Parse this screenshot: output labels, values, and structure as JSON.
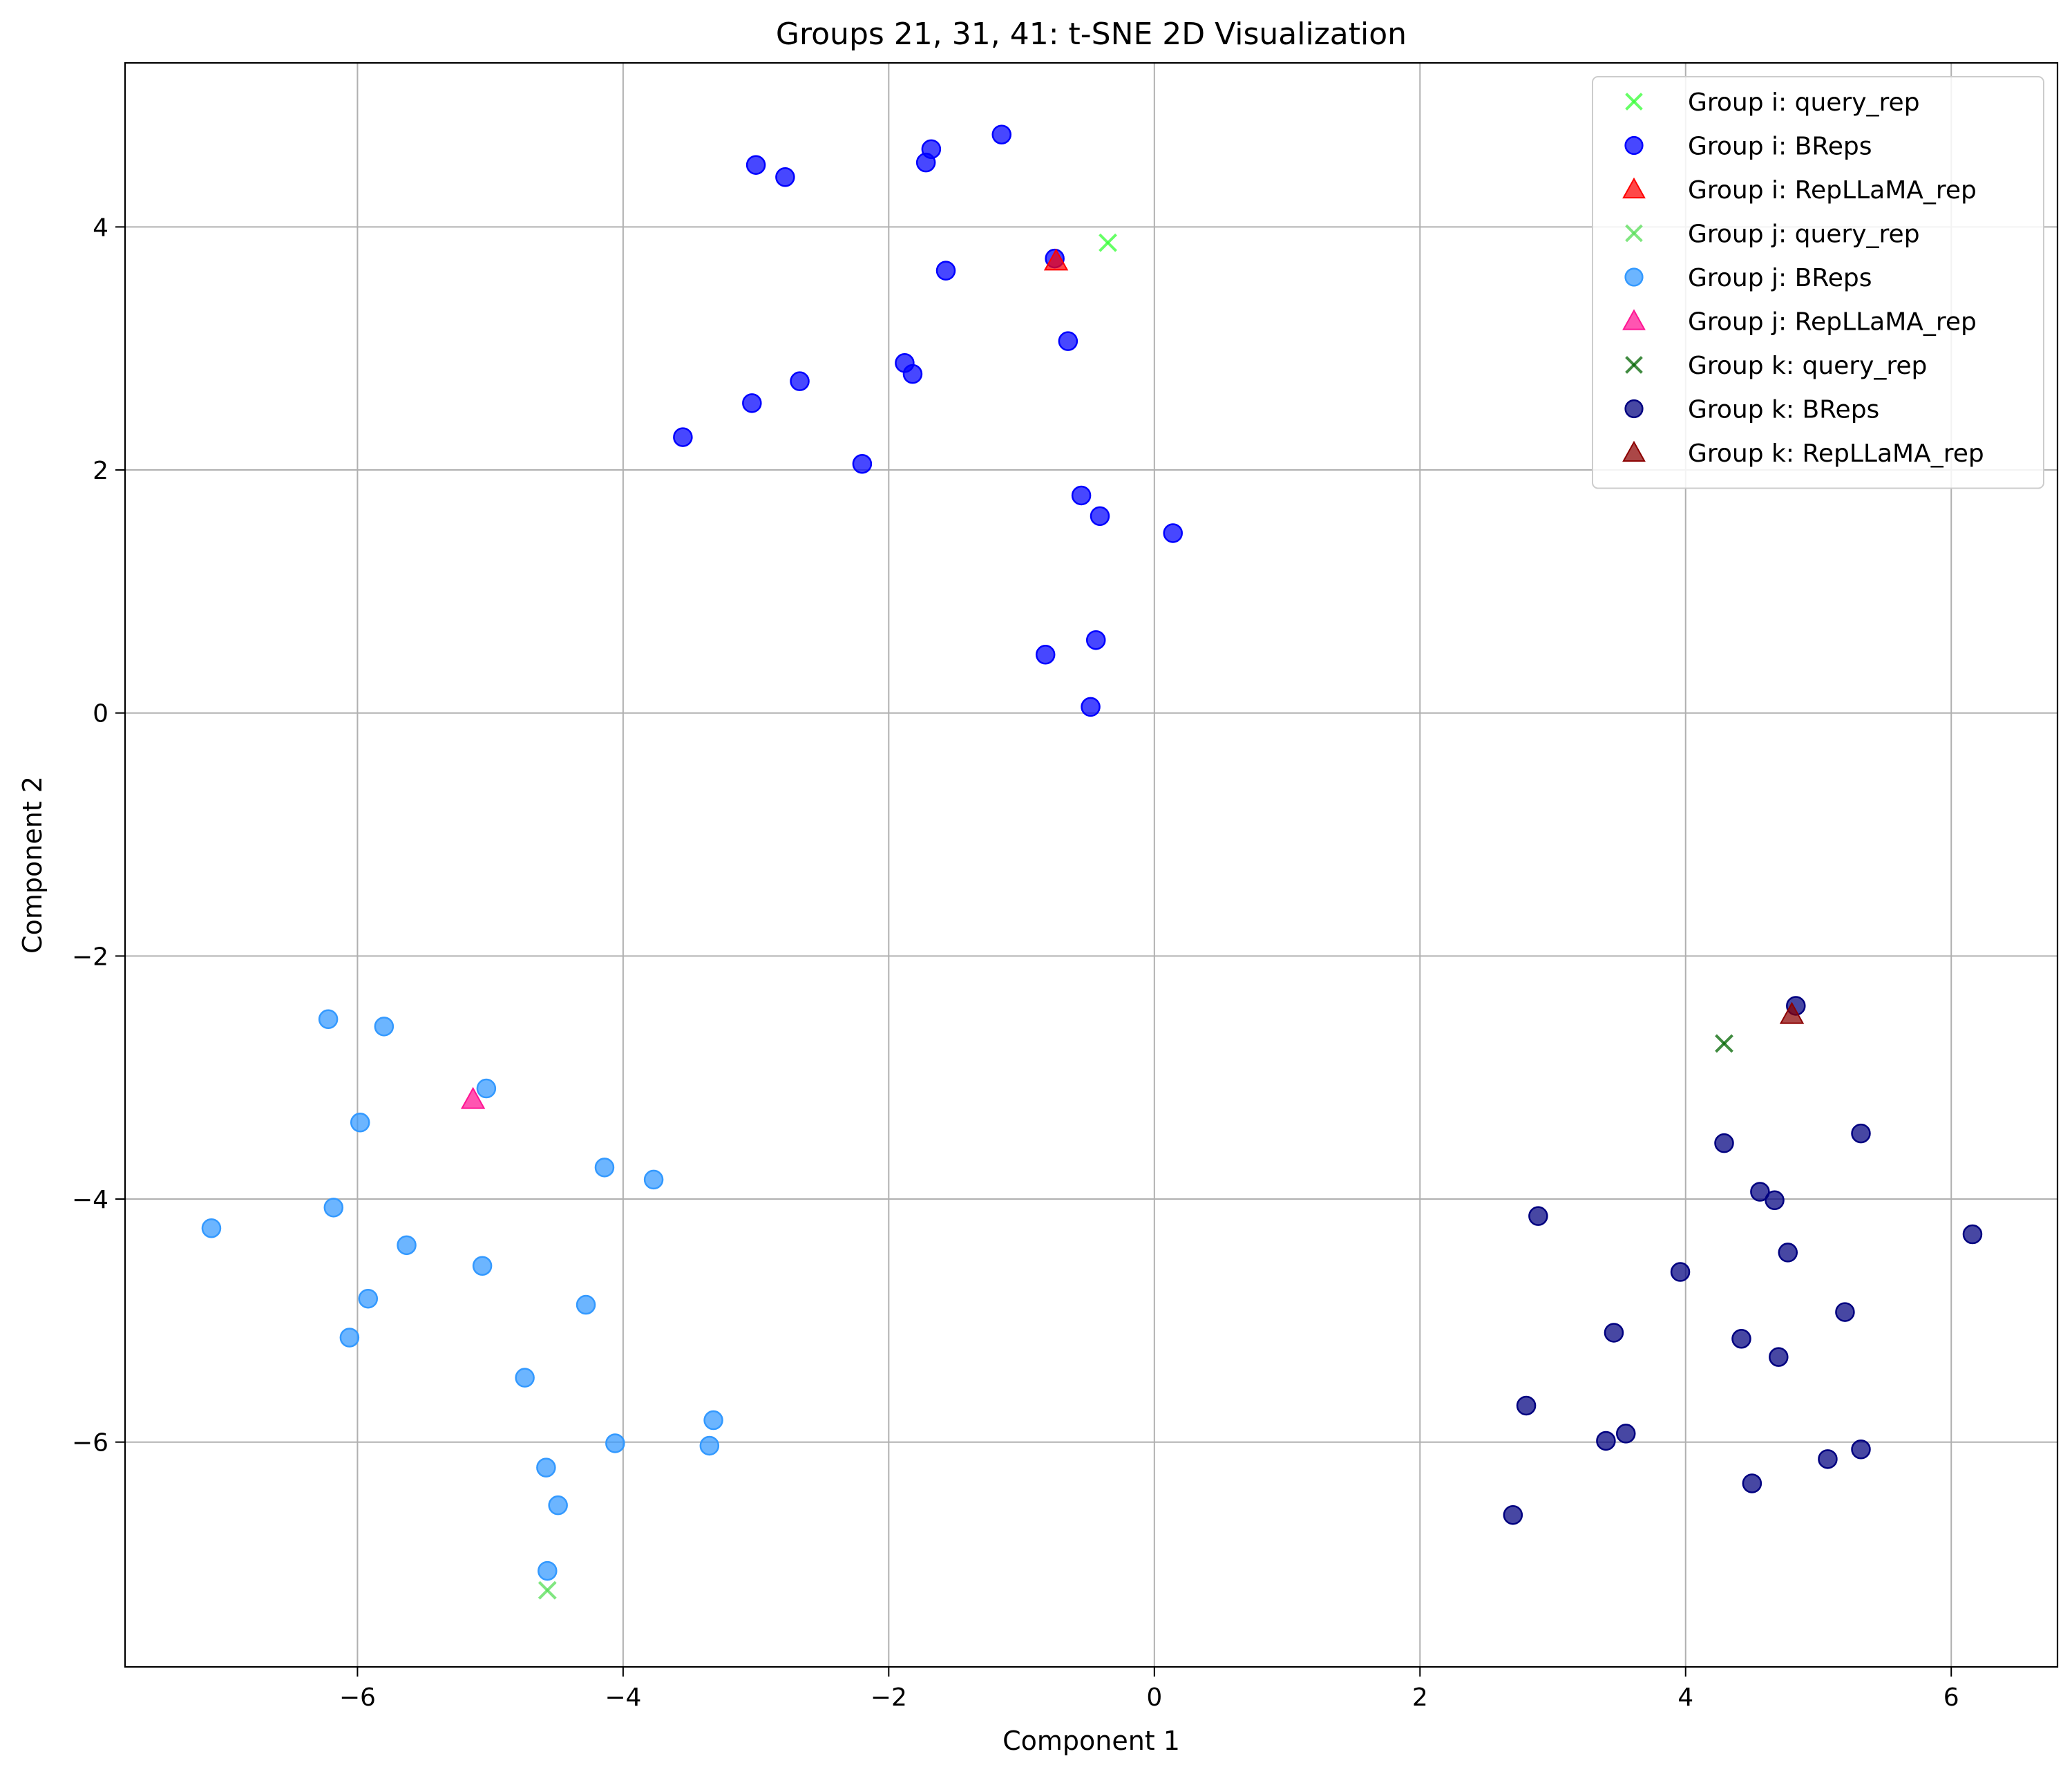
{
  "chart_data": {
    "type": "scatter",
    "title": "Groups 21, 31, 41: t-SNE 2D Visualization",
    "xlabel": "Component 1",
    "ylabel": "Component 2",
    "xlim": [
      -7.75,
      6.8
    ],
    "ylim": [
      -7.85,
      5.35
    ],
    "xticks": [
      -6,
      -4,
      -2,
      0,
      2,
      4,
      6
    ],
    "yticks": [
      -6,
      -4,
      -2,
      0,
      2,
      4
    ],
    "grid": true,
    "legend_position": "top-right",
    "series": [
      {
        "name": "Group i: query_rep",
        "marker": "x",
        "color": "#33ff33",
        "points": [
          [
            -0.35,
            3.87
          ]
        ]
      },
      {
        "name": "Group i: BReps",
        "marker": "circle",
        "color": "#0000ff",
        "points": [
          [
            -1.15,
            4.76
          ],
          [
            -1.68,
            4.64
          ],
          [
            -1.72,
            4.53
          ],
          [
            -3.0,
            4.51
          ],
          [
            -2.78,
            4.41
          ],
          [
            -0.75,
            3.74
          ],
          [
            -1.57,
            3.64
          ],
          [
            -0.65,
            3.06
          ],
          [
            -1.88,
            2.88
          ],
          [
            -1.82,
            2.79
          ],
          [
            -2.67,
            2.73
          ],
          [
            -3.03,
            2.55
          ],
          [
            -3.55,
            2.27
          ],
          [
            -2.2,
            2.05
          ],
          [
            -0.55,
            1.79
          ],
          [
            -0.41,
            1.62
          ],
          [
            0.14,
            1.48
          ],
          [
            -0.82,
            0.48
          ],
          [
            -0.44,
            0.6
          ],
          [
            -0.48,
            0.05
          ]
        ]
      },
      {
        "name": "Group i: RepLLaMA_rep",
        "marker": "triangle",
        "color": "#ff0000",
        "points": [
          [
            -0.74,
            3.72
          ]
        ]
      },
      {
        "name": "Group j: query_rep",
        "marker": "x",
        "color": "#55dd55",
        "points": [
          [
            -4.57,
            -7.22
          ]
        ]
      },
      {
        "name": "Group j: BReps",
        "marker": "circle",
        "color": "#3399ff",
        "points": [
          [
            -6.22,
            -2.52
          ],
          [
            -5.8,
            -2.58
          ],
          [
            -5.03,
            -3.09
          ],
          [
            -5.98,
            -3.37
          ],
          [
            -4.14,
            -3.74
          ],
          [
            -3.77,
            -3.84
          ],
          [
            -6.18,
            -4.07
          ],
          [
            -7.1,
            -4.24
          ],
          [
            -5.63,
            -4.38
          ],
          [
            -5.06,
            -4.55
          ],
          [
            -5.92,
            -4.82
          ],
          [
            -4.28,
            -4.87
          ],
          [
            -6.06,
            -5.14
          ],
          [
            -4.74,
            -5.47
          ],
          [
            -3.32,
            -5.82
          ],
          [
            -4.06,
            -6.01
          ],
          [
            -3.35,
            -6.03
          ],
          [
            -4.58,
            -6.21
          ],
          [
            -4.49,
            -6.52
          ],
          [
            -4.57,
            -7.06
          ]
        ]
      },
      {
        "name": "Group j: RepLLaMA_rep",
        "marker": "triangle",
        "color": "#ff1493",
        "points": [
          [
            -5.13,
            -3.18
          ]
        ]
      },
      {
        "name": "Group k: query_rep",
        "marker": "x",
        "color": "#006400",
        "points": [
          [
            4.29,
            -2.72
          ]
        ]
      },
      {
        "name": "Group k: BReps",
        "marker": "circle",
        "color": "#000080",
        "points": [
          [
            4.83,
            -2.41
          ],
          [
            5.32,
            -3.46
          ],
          [
            4.29,
            -3.54
          ],
          [
            4.56,
            -3.94
          ],
          [
            4.67,
            -4.01
          ],
          [
            2.89,
            -4.14
          ],
          [
            6.16,
            -4.29
          ],
          [
            4.77,
            -4.44
          ],
          [
            3.96,
            -4.6
          ],
          [
            5.2,
            -4.93
          ],
          [
            3.46,
            -5.1
          ],
          [
            4.42,
            -5.15
          ],
          [
            4.7,
            -5.3
          ],
          [
            2.8,
            -5.7
          ],
          [
            3.55,
            -5.93
          ],
          [
            3.4,
            -5.99
          ],
          [
            5.32,
            -6.06
          ],
          [
            5.07,
            -6.14
          ],
          [
            4.5,
            -6.34
          ],
          [
            2.7,
            -6.6
          ]
        ]
      },
      {
        "name": "Group k: RepLLaMA_rep",
        "marker": "triangle",
        "color": "#8b0000",
        "points": [
          [
            4.8,
            -2.48
          ]
        ]
      }
    ]
  }
}
